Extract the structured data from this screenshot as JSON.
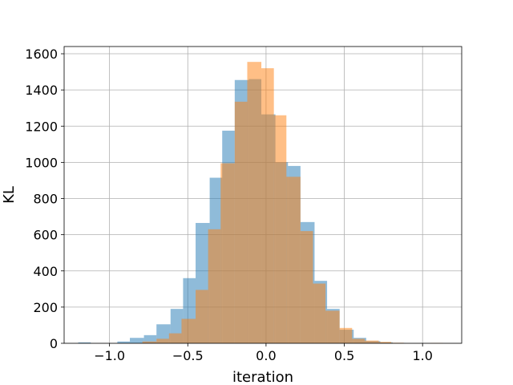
{
  "chart_data": {
    "type": "histogram",
    "title": "",
    "xlabel": "iteration",
    "ylabel": "KL",
    "xlim": [
      -1.29,
      1.25
    ],
    "ylim": [
      0,
      1640
    ],
    "xticks": [
      -1.0,
      -0.5,
      0.0,
      0.5,
      1.0
    ],
    "xtick_labels": [
      "−1.0",
      "−0.5",
      "0.0",
      "0.5",
      "1.0"
    ],
    "yticks": [
      0,
      200,
      400,
      600,
      800,
      1000,
      1200,
      1400,
      1600
    ],
    "ytick_labels": [
      "0",
      "200",
      "400",
      "600",
      "800",
      "1000",
      "1200",
      "1400",
      "1600"
    ],
    "grid": true,
    "series": [
      {
        "color": "#1f77b4",
        "opacity": 0.5,
        "bins": [
          {
            "x0": -1.2,
            "x1": -1.12,
            "count": 5
          },
          {
            "x0": -1.12,
            "x1": -1.03,
            "count": 0
          },
          {
            "x0": -1.03,
            "x1": -0.95,
            "count": 0
          },
          {
            "x0": -0.95,
            "x1": -0.87,
            "count": 10
          },
          {
            "x0": -0.87,
            "x1": -0.78,
            "count": 30
          },
          {
            "x0": -0.78,
            "x1": -0.7,
            "count": 45
          },
          {
            "x0": -0.7,
            "x1": -0.61,
            "count": 105
          },
          {
            "x0": -0.61,
            "x1": -0.53,
            "count": 190
          },
          {
            "x0": -0.53,
            "x1": -0.45,
            "count": 360
          },
          {
            "x0": -0.45,
            "x1": -0.36,
            "count": 665
          },
          {
            "x0": -0.36,
            "x1": -0.28,
            "count": 915
          },
          {
            "x0": -0.28,
            "x1": -0.2,
            "count": 1175
          },
          {
            "x0": -0.2,
            "x1": -0.11,
            "count": 1455
          },
          {
            "x0": -0.11,
            "x1": -0.03,
            "count": 1460
          },
          {
            "x0": -0.03,
            "x1": 0.06,
            "count": 1265
          },
          {
            "x0": 0.06,
            "x1": 0.14,
            "count": 1000
          },
          {
            "x0": 0.14,
            "x1": 0.22,
            "count": 980
          },
          {
            "x0": 0.22,
            "x1": 0.31,
            "count": 670
          },
          {
            "x0": 0.31,
            "x1": 0.39,
            "count": 345
          },
          {
            "x0": 0.39,
            "x1": 0.47,
            "count": 190
          },
          {
            "x0": 0.47,
            "x1": 0.56,
            "count": 75
          },
          {
            "x0": 0.56,
            "x1": 0.64,
            "count": 30
          },
          {
            "x0": 0.64,
            "x1": 0.73,
            "count": 12
          },
          {
            "x0": 0.73,
            "x1": 0.81,
            "count": 5
          },
          {
            "x0": 0.81,
            "x1": 0.89,
            "count": 2
          }
        ]
      },
      {
        "color": "#ff7f0e",
        "opacity": 0.5,
        "bins": [
          {
            "x0": -0.79,
            "x1": -0.7,
            "count": 10
          },
          {
            "x0": -0.7,
            "x1": -0.62,
            "count": 25
          },
          {
            "x0": -0.62,
            "x1": -0.54,
            "count": 55
          },
          {
            "x0": -0.54,
            "x1": -0.45,
            "count": 135
          },
          {
            "x0": -0.45,
            "x1": -0.37,
            "count": 295
          },
          {
            "x0": -0.37,
            "x1": -0.29,
            "count": 630
          },
          {
            "x0": -0.29,
            "x1": -0.2,
            "count": 995
          },
          {
            "x0": -0.2,
            "x1": -0.12,
            "count": 1335
          },
          {
            "x0": -0.12,
            "x1": -0.03,
            "count": 1555
          },
          {
            "x0": -0.03,
            "x1": 0.05,
            "count": 1520
          },
          {
            "x0": 0.05,
            "x1": 0.13,
            "count": 1260
          },
          {
            "x0": 0.13,
            "x1": 0.22,
            "count": 920
          },
          {
            "x0": 0.22,
            "x1": 0.3,
            "count": 620
          },
          {
            "x0": 0.3,
            "x1": 0.38,
            "count": 330
          },
          {
            "x0": 0.38,
            "x1": 0.47,
            "count": 180
          },
          {
            "x0": 0.47,
            "x1": 0.55,
            "count": 85
          },
          {
            "x0": 0.55,
            "x1": 0.63,
            "count": 25
          },
          {
            "x0": 0.63,
            "x1": 0.72,
            "count": 15
          },
          {
            "x0": 0.72,
            "x1": 0.8,
            "count": 8
          },
          {
            "x0": 0.8,
            "x1": 0.88,
            "count": 3
          },
          {
            "x0": 0.88,
            "x1": 0.97,
            "count": 0
          },
          {
            "x0": 0.97,
            "x1": 1.05,
            "count": 0
          },
          {
            "x0": 1.05,
            "x1": 1.13,
            "count": 2
          }
        ]
      }
    ]
  }
}
